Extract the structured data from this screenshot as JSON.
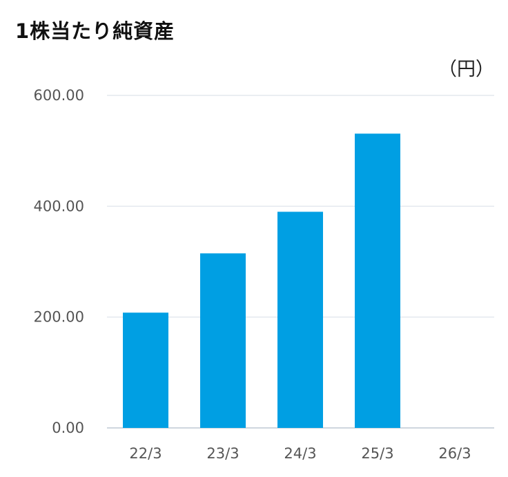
{
  "chart_data": {
    "type": "bar",
    "title": "1株当たり純資産",
    "unit": "（円）",
    "categories": [
      "22/3",
      "23/3",
      "24/3",
      "25/3",
      "26/3"
    ],
    "values": [
      208,
      315,
      390,
      531,
      null
    ],
    "ylim": [
      0,
      600
    ],
    "yticks": [
      "0.00",
      "200.00",
      "400.00",
      "600.00"
    ],
    "grid": true,
    "legend": "none",
    "bar_color": "#009fe3",
    "grid_color": "#e3e8ee",
    "axis_color": "#cfd6de"
  }
}
